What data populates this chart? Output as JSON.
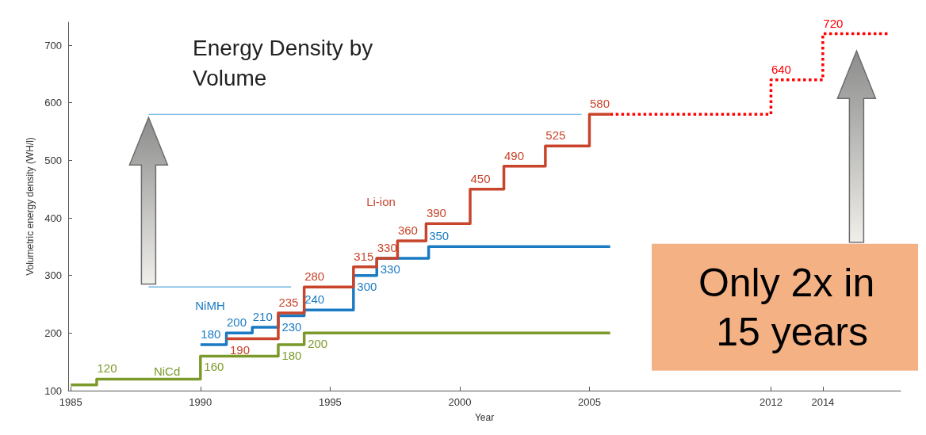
{
  "chart_data": {
    "type": "step",
    "title": "Energy Density by Volume",
    "xlabel": "Year",
    "ylabel": "Volumetric energy density (WH/l)",
    "annotations": [
      "Only 2x in 15 years"
    ],
    "xlim": [
      1984.9,
      2017
    ],
    "xticks": [
      1985,
      1990,
      1995,
      2000,
      2005,
      2012,
      2014
    ],
    "ylim": [
      100,
      740
    ],
    "yticks": [
      100,
      200,
      300,
      400,
      500,
      600,
      700
    ],
    "grid": false,
    "marker": "none",
    "series": [
      {
        "name": "NiCd",
        "color": "#7b9a2a",
        "x": [
          1985,
          1986,
          1990,
          1993,
          1994,
          2005.8
        ],
        "values": [
          110,
          120,
          160,
          180,
          200,
          200
        ],
        "value_labels": [
          null,
          "120",
          "160",
          "180",
          "200",
          null
        ]
      },
      {
        "name": "NiMH",
        "color": "#1a7bc4",
        "x": [
          1990,
          1991,
          1992,
          1993,
          1994,
          1995.9,
          1996.8,
          1998.8,
          2005.8
        ],
        "values": [
          180,
          200,
          210,
          230,
          240,
          300,
          330,
          350,
          350
        ],
        "value_labels": [
          "180",
          "200",
          "210",
          "230",
          "240",
          "300",
          "330",
          "350",
          null
        ]
      },
      {
        "name": "Li-ion",
        "color": "#c8452b",
        "x": [
          1991,
          1993,
          1994,
          1995.9,
          1996.8,
          1997.6,
          1998.7,
          2000.4,
          2001.7,
          2003.3,
          2005,
          2005.8
        ],
        "values": [
          190,
          235,
          280,
          315,
          330,
          360,
          390,
          450,
          490,
          525,
          580,
          580
        ],
        "value_labels": [
          "190",
          "235",
          "280",
          "315",
          "330",
          "360",
          "390",
          "450",
          "490",
          "525",
          "580",
          null
        ]
      },
      {
        "color": "#ff0000",
        "line_style": "dotted",
        "x": [
          2005.8,
          2012,
          2014,
          2016.5
        ],
        "values": [
          580,
          640,
          720,
          720
        ],
        "value_labels": [
          null,
          "640",
          "720",
          null
        ]
      },
      {
        "type": "line",
        "color": "#5aaae0",
        "x": [
          1988,
          2004.7
        ],
        "values": [
          580,
          580
        ]
      },
      {
        "type": "line",
        "color": "#5aaae0",
        "x": [
          1988,
          1993.5
        ],
        "values": [
          280,
          280
        ]
      }
    ]
  }
}
